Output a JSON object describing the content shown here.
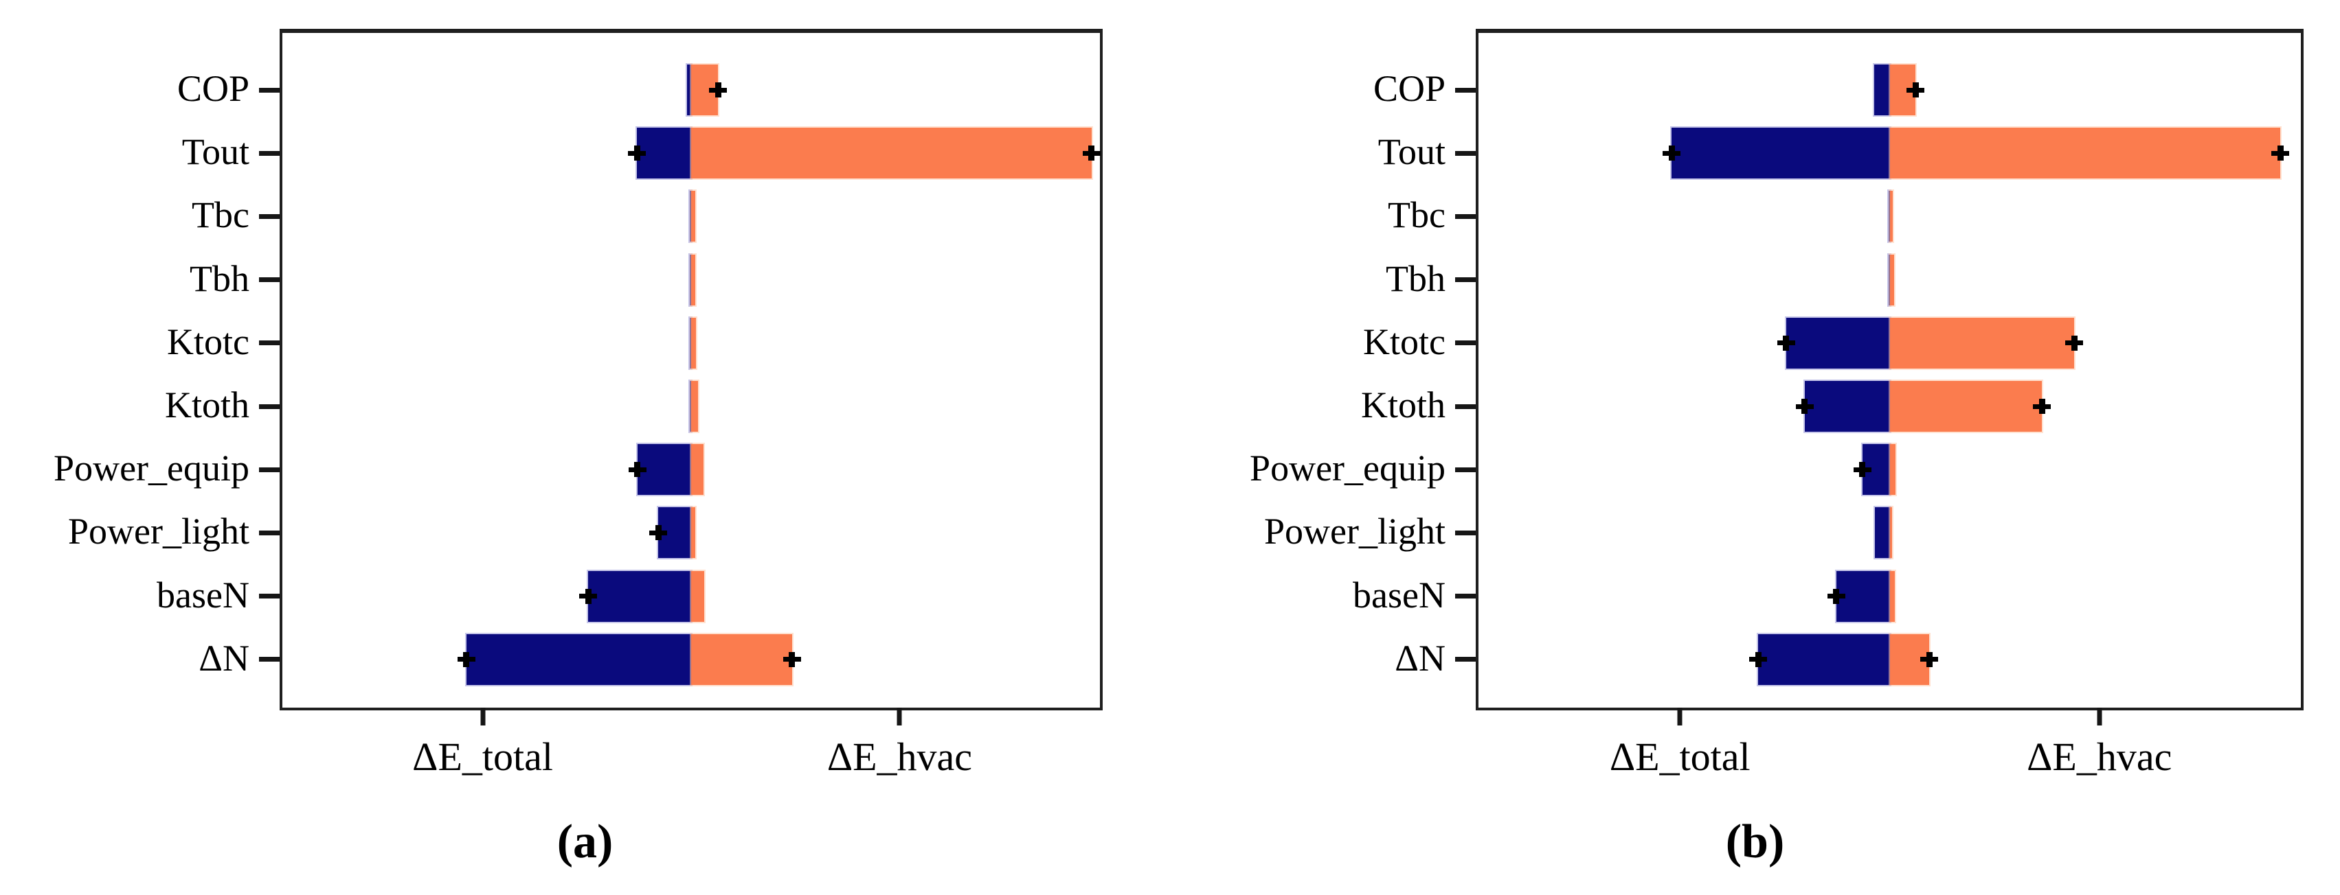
{
  "colors": {
    "total_series_navy": "#0a0a7d",
    "hvac_series_orange": "#fb7c4e",
    "error_bar_black": "#000000",
    "axis_frame": "#1f1f1f"
  },
  "chart_data": {
    "type": "bar",
    "variant": "horizontal-diverging-tornado",
    "grid": false,
    "legend": null,
    "numeric_axis_labels_shown": false,
    "value_units": "bar extent relative to x-tick distance from the central zero line (1.0 = one tick)",
    "categories": [
      "COP",
      "Tout",
      "Tbc",
      "Tbh",
      "Ktotc",
      "Ktoth",
      "Power_equip",
      "Power_light",
      "baseN",
      "ΔN"
    ],
    "x_axis": {
      "tick_labels": [
        "ΔE_total",
        "ΔE_hvac"
      ],
      "tick_positions_units": [
        -1,
        1
      ]
    },
    "series_meaning": {
      "navy_left": "ΔE_total sensitivity (extends left of zero)",
      "orange_right": "ΔE_hvac sensitivity (extends right of zero)"
    },
    "panels": [
      {
        "caption": "(a)",
        "rows": [
          {
            "label": "COP",
            "total": 0.02,
            "hvac": 0.13,
            "errL": false,
            "errR": true
          },
          {
            "label": "Tout",
            "total": 0.26,
            "hvac": 1.92,
            "errL": true,
            "errR": true
          },
          {
            "label": "Tbc",
            "total": 0.006,
            "hvac": 0.02,
            "errL": false,
            "errR": false
          },
          {
            "label": "Tbh",
            "total": 0.006,
            "hvac": 0.02,
            "errL": false,
            "errR": false
          },
          {
            "label": "Ktotc",
            "total": 0.008,
            "hvac": 0.023,
            "errL": false,
            "errR": false
          },
          {
            "label": "Ktoth",
            "total": 0.007,
            "hvac": 0.033,
            "errL": false,
            "errR": false
          },
          {
            "label": "Power_equip",
            "total": 0.258,
            "hvac": 0.059,
            "errL": true,
            "errR": false
          },
          {
            "label": "Power_light",
            "total": 0.157,
            "hvac": 0.02,
            "errL": true,
            "errR": false
          },
          {
            "label": "baseN",
            "total": 0.494,
            "hvac": 0.062,
            "errL": true,
            "errR": false
          },
          {
            "label": "ΔN",
            "total": 1.078,
            "hvac": 0.484,
            "errL": true,
            "errR": true
          }
        ]
      },
      {
        "caption": "(b)",
        "rows": [
          {
            "label": "COP",
            "total": 0.075,
            "hvac": 0.124,
            "errL": false,
            "errR": true
          },
          {
            "label": "Tout",
            "total": 1.039,
            "hvac": 1.863,
            "errL": true,
            "errR": true
          },
          {
            "label": "Tbc",
            "total": 0.006,
            "hvac": 0.016,
            "errL": false,
            "errR": false
          },
          {
            "label": "Tbh",
            "total": 0.006,
            "hvac": 0.02,
            "errL": false,
            "errR": false
          },
          {
            "label": "Ktotc",
            "total": 0.494,
            "hvac": 0.88,
            "errL": true,
            "errR": true
          },
          {
            "label": "Ktoth",
            "total": 0.405,
            "hvac": 0.726,
            "errL": true,
            "errR": true
          },
          {
            "label": "Power_equip",
            "total": 0.131,
            "hvac": 0.029,
            "errL": true,
            "errR": false
          },
          {
            "label": "Power_light",
            "total": 0.069,
            "hvac": 0.01,
            "errL": false,
            "errR": false
          },
          {
            "label": "baseN",
            "total": 0.255,
            "hvac": 0.023,
            "errL": true,
            "errR": false
          },
          {
            "label": "ΔN",
            "total": 0.627,
            "hvac": 0.19,
            "errL": true,
            "errR": true
          }
        ]
      }
    ]
  }
}
